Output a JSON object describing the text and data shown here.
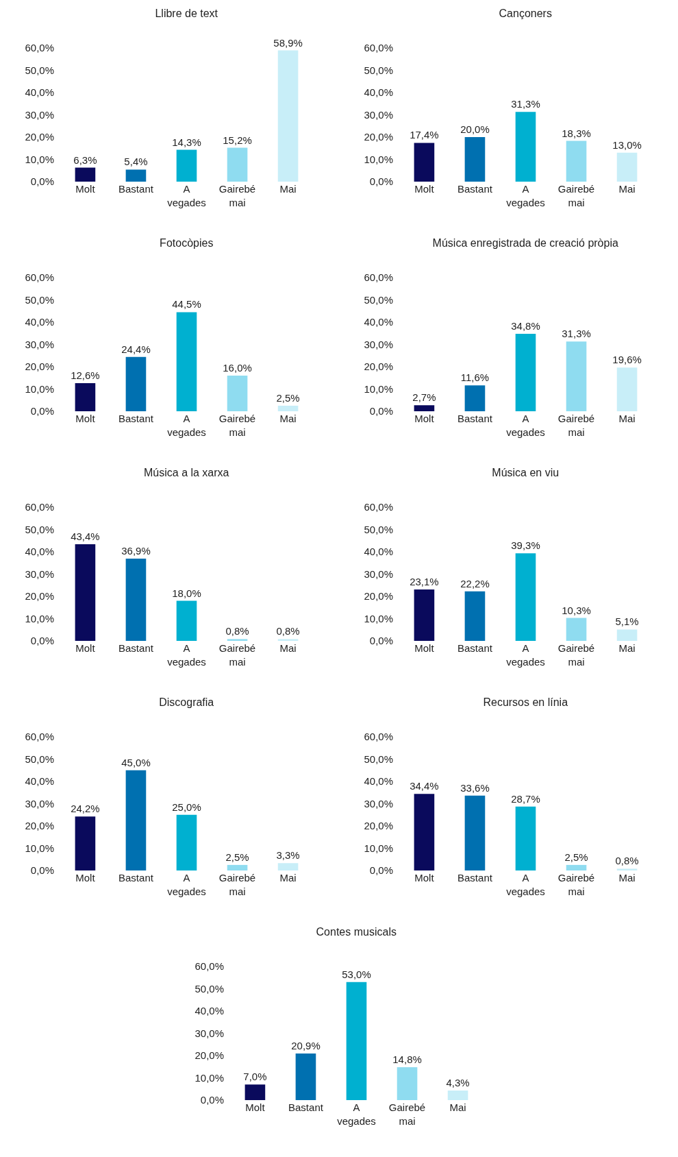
{
  "chart_data": [
    {
      "type": "bar",
      "title": "Llibre de text",
      "categories": [
        "Molt",
        "Bastant",
        "A vegades",
        "Gairebé mai",
        "Mai"
      ],
      "colors": [
        "#0a0a5c",
        "#0070b0",
        "#00b0d0",
        "#8fdcf0",
        "#c8eef8"
      ],
      "values": [
        6.3,
        5.4,
        14.3,
        15.2,
        58.9
      ],
      "value_labels": [
        "6,3%",
        "5,4%",
        "14,3%",
        "15,2%",
        "58,9%"
      ],
      "ylim": [
        0,
        60
      ],
      "yticks": [
        {
          "value": 0,
          "label": "0,0%"
        },
        {
          "value": 10,
          "label": "10,0%"
        },
        {
          "value": 20,
          "label": "20,0%"
        },
        {
          "value": 30,
          "label": "30,0%"
        },
        {
          "value": 40,
          "label": "40,0%"
        },
        {
          "value": 50,
          "label": "50,0%"
        },
        {
          "value": 60,
          "label": "60,0%"
        }
      ]
    },
    {
      "type": "bar",
      "title": "Cançoners",
      "categories": [
        "Molt",
        "Bastant",
        "A vegades",
        "Gairebé mai",
        "Mai"
      ],
      "colors": [
        "#0a0a5c",
        "#0070b0",
        "#00b0d0",
        "#8fdcf0",
        "#c8eef8"
      ],
      "values": [
        17.4,
        20.0,
        31.3,
        18.3,
        13.0
      ],
      "value_labels": [
        "17,4%",
        "20,0%",
        "31,3%",
        "18,3%",
        "13,0%"
      ],
      "ylim": [
        0,
        60
      ],
      "yticks": [
        {
          "value": 0,
          "label": "0,0%"
        },
        {
          "value": 10,
          "label": "10,0%"
        },
        {
          "value": 20,
          "label": "20,0%"
        },
        {
          "value": 30,
          "label": "30,0%"
        },
        {
          "value": 40,
          "label": "40,0%"
        },
        {
          "value": 50,
          "label": "50,0%"
        },
        {
          "value": 60,
          "label": "60,0%"
        }
      ]
    },
    {
      "type": "bar",
      "title": "Fotocòpies",
      "categories": [
        "Molt",
        "Bastant",
        "A vegades",
        "Gairebé mai",
        "Mai"
      ],
      "colors": [
        "#0a0a5c",
        "#0070b0",
        "#00b0d0",
        "#8fdcf0",
        "#c8eef8"
      ],
      "values": [
        12.6,
        24.4,
        44.5,
        16.0,
        2.5
      ],
      "value_labels": [
        "12,6%",
        "24,4%",
        "44,5%",
        "16,0%",
        "2,5%"
      ],
      "ylim": [
        0,
        60
      ],
      "yticks": [
        {
          "value": 0,
          "label": "0,0%"
        },
        {
          "value": 10,
          "label": "10,0%"
        },
        {
          "value": 20,
          "label": "20,0%"
        },
        {
          "value": 30,
          "label": "30,0%"
        },
        {
          "value": 40,
          "label": "40,0%"
        },
        {
          "value": 50,
          "label": "50,0%"
        },
        {
          "value": 60,
          "label": "60,0%"
        }
      ]
    },
    {
      "type": "bar",
      "title": "Música enregistrada de creació pròpia",
      "categories": [
        "Molt",
        "Bastant",
        "A vegades",
        "Gairebé mai",
        "Mai"
      ],
      "colors": [
        "#0a0a5c",
        "#0070b0",
        "#00b0d0",
        "#8fdcf0",
        "#c8eef8"
      ],
      "values": [
        2.7,
        11.6,
        34.8,
        31.3,
        19.6
      ],
      "value_labels": [
        "2,7%",
        "11,6%",
        "34,8%",
        "31,3%",
        "19,6%"
      ],
      "ylim": [
        0,
        60
      ],
      "yticks": [
        {
          "value": 0,
          "label": "0,0%"
        },
        {
          "value": 10,
          "label": "10,0%"
        },
        {
          "value": 20,
          "label": "20,0%"
        },
        {
          "value": 30,
          "label": "30,0%"
        },
        {
          "value": 40,
          "label": "40,0%"
        },
        {
          "value": 50,
          "label": "50,0%"
        },
        {
          "value": 60,
          "label": "60,0%"
        }
      ]
    },
    {
      "type": "bar",
      "title": "Música a la xarxa",
      "categories": [
        "Molt",
        "Bastant",
        "A vegades",
        "Gairebé mai",
        "Mai"
      ],
      "colors": [
        "#0a0a5c",
        "#0070b0",
        "#00b0d0",
        "#8fdcf0",
        "#c8eef8"
      ],
      "values": [
        43.4,
        36.9,
        18.0,
        0.8,
        0.8
      ],
      "value_labels": [
        "43,4%",
        "36,9%",
        "18,0%",
        "0,8%",
        "0,8%"
      ],
      "ylim": [
        0,
        60
      ],
      "yticks": [
        {
          "value": 0,
          "label": "0,0%"
        },
        {
          "value": 10,
          "label": "10,0%"
        },
        {
          "value": 20,
          "label": "20,0%"
        },
        {
          "value": 30,
          "label": "30,0%"
        },
        {
          "value": 40,
          "label": "40,0%"
        },
        {
          "value": 50,
          "label": "50,0%"
        },
        {
          "value": 60,
          "label": "60,0%"
        }
      ]
    },
    {
      "type": "bar",
      "title": "Música en viu",
      "categories": [
        "Molt",
        "Bastant",
        "A vegades",
        "Gairebé mai",
        "Mai"
      ],
      "colors": [
        "#0a0a5c",
        "#0070b0",
        "#00b0d0",
        "#8fdcf0",
        "#c8eef8"
      ],
      "values": [
        23.1,
        22.2,
        39.3,
        10.3,
        5.1
      ],
      "value_labels": [
        "23,1%",
        "22,2%",
        "39,3%",
        "10,3%",
        "5,1%"
      ],
      "ylim": [
        0,
        60
      ],
      "yticks": [
        {
          "value": 0,
          "label": "0,0%"
        },
        {
          "value": 10,
          "label": "10,0%"
        },
        {
          "value": 20,
          "label": "20,0%"
        },
        {
          "value": 30,
          "label": "30,0%"
        },
        {
          "value": 40,
          "label": "40,0%"
        },
        {
          "value": 50,
          "label": "50,0%"
        },
        {
          "value": 60,
          "label": "60,0%"
        }
      ]
    },
    {
      "type": "bar",
      "title": "Discografia",
      "categories": [
        "Molt",
        "Bastant",
        "A vegades",
        "Gairebé mai",
        "Mai"
      ],
      "colors": [
        "#0a0a5c",
        "#0070b0",
        "#00b0d0",
        "#8fdcf0",
        "#c8eef8"
      ],
      "values": [
        24.2,
        45.0,
        25.0,
        2.5,
        3.3
      ],
      "value_labels": [
        "24,2%",
        "45,0%",
        "25,0%",
        "2,5%",
        "3,3%"
      ],
      "ylim": [
        0,
        60
      ],
      "yticks": [
        {
          "value": 0,
          "label": "0,0%"
        },
        {
          "value": 10,
          "label": "10,0%"
        },
        {
          "value": 20,
          "label": "20,0%"
        },
        {
          "value": 30,
          "label": "30,0%"
        },
        {
          "value": 40,
          "label": "40,0%"
        },
        {
          "value": 50,
          "label": "50,0%"
        },
        {
          "value": 60,
          "label": "60,0%"
        }
      ]
    },
    {
      "type": "bar",
      "title": "Recursos en línia",
      "categories": [
        "Molt",
        "Bastant",
        "A vegades",
        "Gairebé mai",
        "Mai"
      ],
      "colors": [
        "#0a0a5c",
        "#0070b0",
        "#00b0d0",
        "#8fdcf0",
        "#c8eef8"
      ],
      "values": [
        34.4,
        33.6,
        28.7,
        2.5,
        0.8
      ],
      "value_labels": [
        "34,4%",
        "33,6%",
        "28,7%",
        "2,5%",
        "0,8%"
      ],
      "ylim": [
        0,
        60
      ],
      "yticks": [
        {
          "value": 0,
          "label": "0,0%"
        },
        {
          "value": 10,
          "label": "10,0%"
        },
        {
          "value": 20,
          "label": "20,0%"
        },
        {
          "value": 30,
          "label": "30,0%"
        },
        {
          "value": 40,
          "label": "40,0%"
        },
        {
          "value": 50,
          "label": "50,0%"
        },
        {
          "value": 60,
          "label": "60,0%"
        }
      ]
    },
    {
      "type": "bar",
      "title": "Contes musicals",
      "categories": [
        "Molt",
        "Bastant",
        "A vegades",
        "Gairebé mai",
        "Mai"
      ],
      "colors": [
        "#0a0a5c",
        "#0070b0",
        "#00b0d0",
        "#8fdcf0",
        "#c8eef8"
      ],
      "values": [
        7.0,
        20.9,
        53.0,
        14.8,
        4.3
      ],
      "value_labels": [
        "7,0%",
        "20,9%",
        "53,0%",
        "14,8%",
        "4,3%"
      ],
      "ylim": [
        0,
        60
      ],
      "yticks": [
        {
          "value": 0,
          "label": "0,0%"
        },
        {
          "value": 10,
          "label": "10,0%"
        },
        {
          "value": 20,
          "label": "20,0%"
        },
        {
          "value": 30,
          "label": "30,0%"
        },
        {
          "value": 40,
          "label": "40,0%"
        },
        {
          "value": 50,
          "label": "50,0%"
        },
        {
          "value": 60,
          "label": "60,0%"
        }
      ]
    }
  ]
}
